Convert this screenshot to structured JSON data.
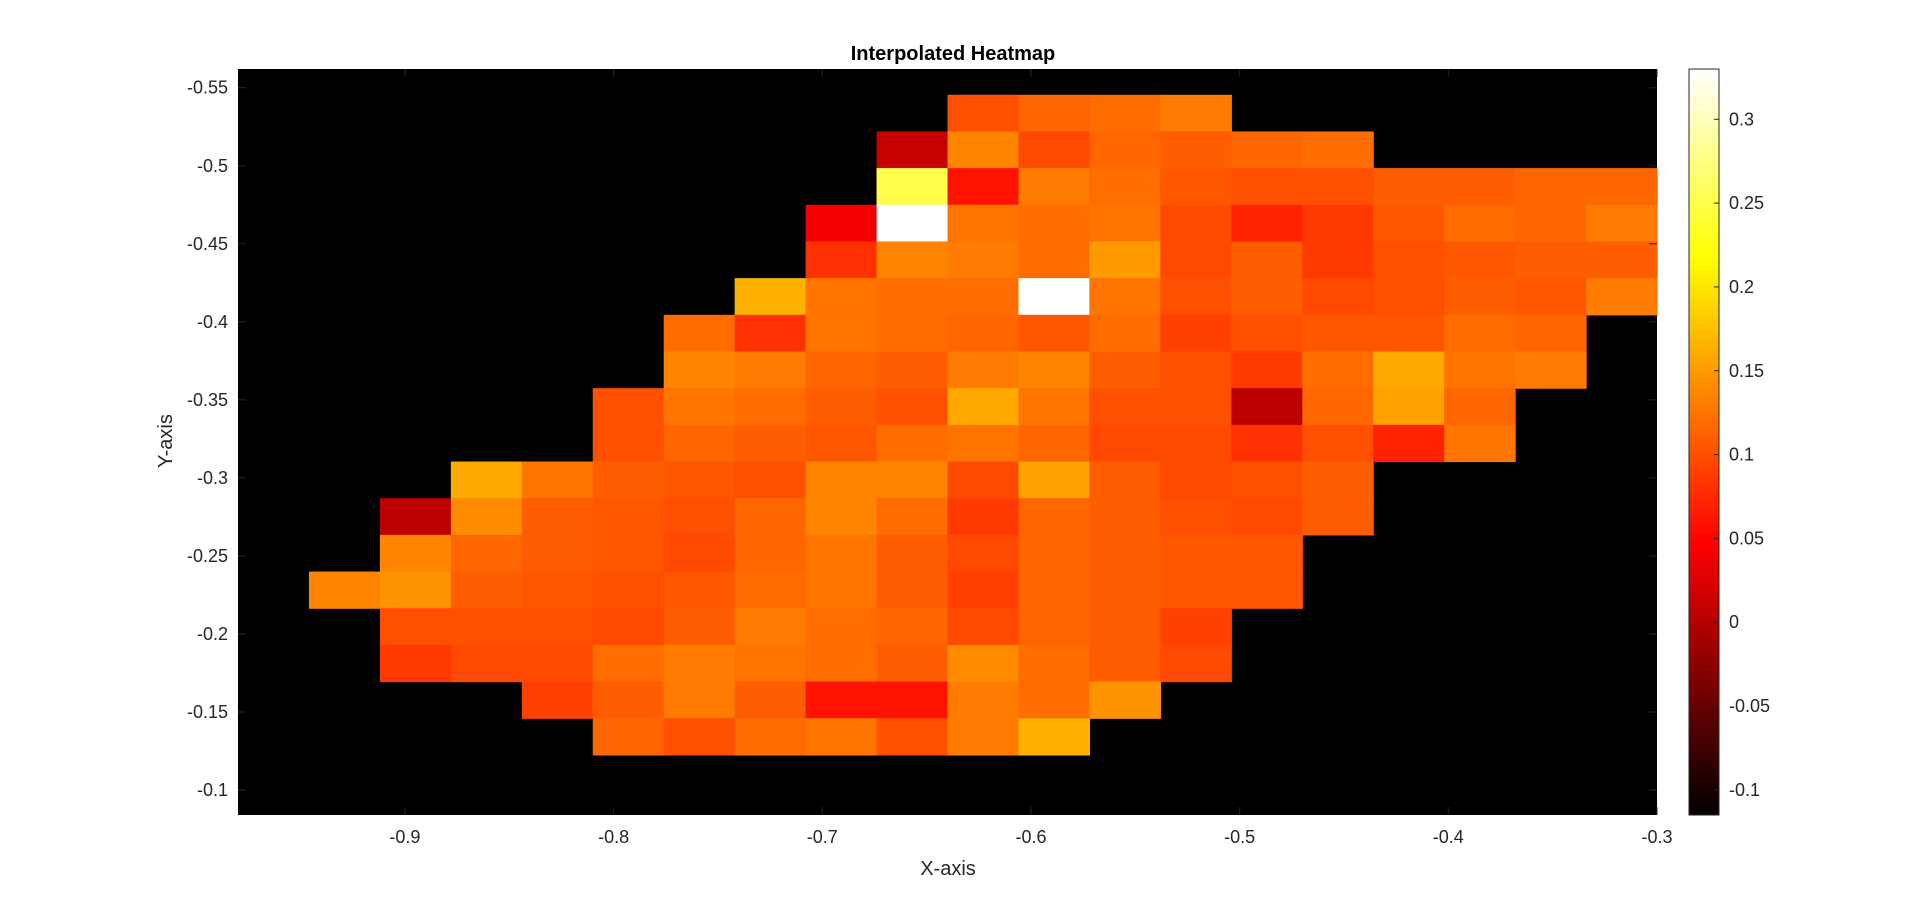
{
  "chart_data": {
    "type": "heatmap",
    "title": "Interpolated Heatmap",
    "xlabel": "X-axis",
    "ylabel": "Y-axis",
    "xlim": [
      -0.98,
      -0.3
    ],
    "ylim": [
      -0.084,
      -0.562
    ],
    "y_direction": "reversed",
    "colormap": "hot",
    "clim": [
      -0.115,
      0.33
    ],
    "background_color": "#000000",
    "x_ticks": [
      -0.9,
      -0.8,
      -0.7,
      -0.6,
      -0.5,
      -0.4,
      -0.3
    ],
    "x_tick_labels": [
      "-0.9",
      "-0.8",
      "-0.7",
      "-0.6",
      "-0.5",
      "-0.4",
      "-0.3"
    ],
    "y_ticks": [
      -0.55,
      -0.5,
      -0.45,
      -0.4,
      -0.35,
      -0.3,
      -0.25,
      -0.2,
      -0.15,
      -0.1
    ],
    "y_tick_labels": [
      "-0.55",
      "-0.5",
      "-0.45",
      "-0.4",
      "-0.35",
      "-0.3",
      "-0.25",
      "-0.2",
      "-0.15",
      "-0.1"
    ],
    "colorbar_ticks": [
      -0.1,
      -0.05,
      0,
      0.05,
      0.1,
      0.15,
      0.2,
      0.25,
      0.3
    ],
    "colorbar_tick_labels": [
      "-0.1",
      "-0.05",
      "0",
      "0.05",
      "0.1",
      "0.15",
      "0.2",
      "0.25",
      "0.3"
    ],
    "x_start": -0.946,
    "cell_width": 0.034,
    "y_start": -0.5455,
    "cell_height": 0.0235,
    "rows": [
      [
        null,
        null,
        null,
        null,
        null,
        null,
        null,
        null,
        null,
        0.1,
        0.115,
        0.12,
        0.13,
        null,
        null,
        null,
        null,
        null,
        null,
        null,
        null
      ],
      [
        null,
        null,
        null,
        null,
        null,
        null,
        null,
        null,
        0.01,
        0.135,
        0.095,
        0.115,
        0.11,
        0.115,
        0.12,
        null,
        null,
        null,
        null,
        null,
        null
      ],
      [
        null,
        null,
        null,
        null,
        null,
        null,
        null,
        null,
        0.25,
        0.06,
        0.13,
        0.12,
        0.105,
        0.1,
        0.1,
        0.11,
        0.11,
        0.115,
        0.115,
        null,
        null
      ],
      [
        null,
        null,
        null,
        null,
        null,
        null,
        null,
        0.04,
        0.33,
        0.125,
        0.12,
        0.125,
        0.095,
        0.07,
        0.085,
        0.105,
        0.12,
        0.115,
        0.13,
        null,
        null
      ],
      [
        null,
        null,
        null,
        null,
        null,
        null,
        null,
        0.08,
        0.135,
        0.13,
        0.12,
        0.15,
        0.095,
        0.11,
        0.085,
        0.1,
        0.105,
        0.11,
        0.11,
        null,
        null
      ],
      [
        null,
        null,
        null,
        null,
        null,
        null,
        0.165,
        0.125,
        0.12,
        0.12,
        0.33,
        0.125,
        0.1,
        0.11,
        0.095,
        0.1,
        0.11,
        0.105,
        0.13,
        null,
        null
      ],
      [
        null,
        null,
        null,
        null,
        null,
        0.12,
        0.08,
        0.125,
        0.12,
        0.115,
        0.105,
        0.12,
        0.09,
        0.1,
        0.105,
        0.105,
        0.12,
        0.115,
        null,
        null,
        null
      ],
      [
        null,
        null,
        null,
        null,
        null,
        0.135,
        0.13,
        0.115,
        0.11,
        0.13,
        0.135,
        0.11,
        0.1,
        0.085,
        0.12,
        0.16,
        0.125,
        0.13,
        null,
        null,
        null
      ],
      [
        null,
        null,
        null,
        null,
        0.1,
        0.125,
        0.12,
        0.11,
        0.1,
        0.16,
        0.125,
        0.1,
        0.1,
        0.005,
        0.115,
        0.155,
        0.115,
        null,
        null,
        null,
        null
      ],
      [
        null,
        null,
        null,
        null,
        0.1,
        0.115,
        0.11,
        0.105,
        0.12,
        0.125,
        0.115,
        0.095,
        0.095,
        0.08,
        0.1,
        0.07,
        0.125,
        null,
        null,
        null,
        null
      ],
      [
        null,
        null,
        0.16,
        0.125,
        0.11,
        0.105,
        0.1,
        0.135,
        0.135,
        0.095,
        0.155,
        0.11,
        0.095,
        0.1,
        0.11,
        null,
        null,
        null,
        null,
        null,
        null
      ],
      [
        null,
        0.005,
        0.14,
        0.11,
        0.105,
        0.1,
        0.115,
        0.135,
        0.12,
        0.085,
        0.115,
        0.11,
        0.1,
        0.095,
        0.11,
        null,
        null,
        null,
        null,
        null,
        null
      ],
      [
        null,
        0.135,
        0.115,
        0.11,
        0.105,
        0.095,
        0.115,
        0.125,
        0.11,
        0.095,
        0.115,
        0.11,
        0.105,
        0.105,
        null,
        null,
        null,
        null,
        null,
        null,
        null
      ],
      [
        0.135,
        0.145,
        0.11,
        0.105,
        0.1,
        0.105,
        0.12,
        0.125,
        0.11,
        0.09,
        0.115,
        0.11,
        0.105,
        0.105,
        null,
        null,
        null,
        null,
        null,
        null,
        null
      ],
      [
        null,
        0.1,
        0.1,
        0.1,
        0.095,
        0.11,
        0.13,
        0.12,
        0.115,
        0.095,
        0.115,
        0.11,
        0.09,
        null,
        null,
        null,
        null,
        null,
        null,
        null,
        null
      ],
      [
        null,
        0.085,
        0.095,
        0.095,
        0.12,
        0.13,
        0.125,
        0.12,
        0.11,
        0.14,
        0.12,
        0.11,
        0.095,
        null,
        null,
        null,
        null,
        null,
        null,
        null,
        null
      ],
      [
        null,
        null,
        null,
        0.09,
        0.11,
        0.13,
        0.11,
        0.06,
        0.06,
        0.13,
        0.12,
        0.145,
        null,
        null,
        null,
        null,
        null,
        null,
        null,
        null,
        null
      ],
      [
        null,
        null,
        null,
        null,
        0.115,
        0.1,
        0.12,
        0.125,
        0.1,
        0.13,
        0.165,
        null,
        null,
        null,
        null,
        null,
        null,
        null,
        null,
        null,
        null
      ]
    ]
  }
}
